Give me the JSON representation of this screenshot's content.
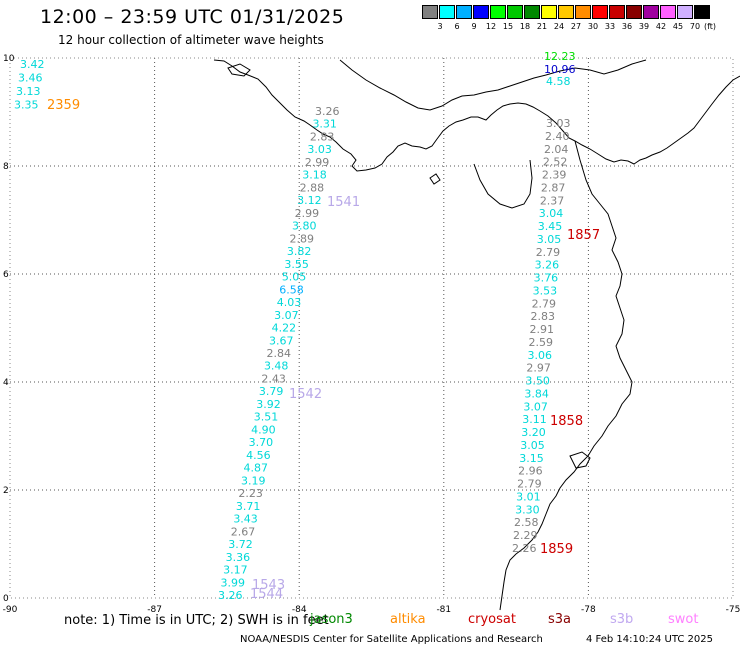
{
  "title": "12:00 – 23:59 UTC 01/31/2025",
  "subtitle": "12 hour collection of altimeter wave heights",
  "colorbar": {
    "unit": "(ft)",
    "colors": [
      "#808080",
      "#00ffff",
      "#00b0ff",
      "#0000ff",
      "#00ff00",
      "#00c800",
      "#008800",
      "#ffff00",
      "#ffc800",
      "#ff8c00",
      "#ff0000",
      "#c80000",
      "#880000",
      "#a000a0",
      "#ff60ff",
      "#d0b0ff",
      "#000000"
    ],
    "labels": [
      "3",
      "6",
      "9",
      "12",
      "15",
      "18",
      "21",
      "24",
      "27",
      "30",
      "33",
      "36",
      "39",
      "42",
      "45",
      "70",
      "(ft)"
    ]
  },
  "axes": {
    "lon_ticks": [
      "-90",
      "-87",
      "-84",
      "-81",
      "-78",
      "-75"
    ],
    "lat_ticks": [
      "0",
      "2",
      "4",
      "6",
      "8",
      "10"
    ],
    "lon_range": [
      -90,
      -75
    ],
    "lat_range": [
      0,
      10
    ]
  },
  "tracks": [
    {
      "id": "track-2359",
      "label": "2359",
      "label_color": "#ff8c00",
      "values": [
        {
          "v": "3.42",
          "c": "#00d8d8"
        },
        {
          "v": "3.46",
          "c": "#00d8d8"
        },
        {
          "v": "3.13",
          "c": "#00d8d8"
        },
        {
          "v": "3.35",
          "c": "#00d8d8"
        }
      ]
    },
    {
      "id": "track-western",
      "labels": [
        {
          "text": "1541",
          "color": "#b8a8e8"
        },
        {
          "text": "1542",
          "color": "#b8a8e8"
        },
        {
          "text": "1543",
          "color": "#b8a8e8"
        },
        {
          "text": "1544",
          "color": "#b8a8e8"
        }
      ],
      "values": [
        {
          "v": "3.26",
          "c": "#808080"
        },
        {
          "v": "3.31",
          "c": "#00d8d8"
        },
        {
          "v": "2.83",
          "c": "#808080"
        },
        {
          "v": "3.03",
          "c": "#00d8d8"
        },
        {
          "v": "2.99",
          "c": "#808080"
        },
        {
          "v": "3.18",
          "c": "#00d8d8"
        },
        {
          "v": "2.88",
          "c": "#808080"
        },
        {
          "v": "3.12",
          "c": "#00d8d8"
        },
        {
          "v": "2.99",
          "c": "#808080"
        },
        {
          "v": "3.80",
          "c": "#00d8d8"
        },
        {
          "v": "2.89",
          "c": "#808080"
        },
        {
          "v": "3.82",
          "c": "#00d8d8"
        },
        {
          "v": "3.55",
          "c": "#00d8d8"
        },
        {
          "v": "5.05",
          "c": "#00d8d8"
        },
        {
          "v": "6.58",
          "c": "#00b0ff"
        },
        {
          "v": "4.03",
          "c": "#00d8d8"
        },
        {
          "v": "3.07",
          "c": "#00d8d8"
        },
        {
          "v": "4.22",
          "c": "#00d8d8"
        },
        {
          "v": "3.67",
          "c": "#00d8d8"
        },
        {
          "v": "2.84",
          "c": "#808080"
        },
        {
          "v": "3.48",
          "c": "#00d8d8"
        },
        {
          "v": "2.43",
          "c": "#808080"
        },
        {
          "v": "3.79",
          "c": "#00d8d8"
        },
        {
          "v": "3.92",
          "c": "#00d8d8"
        },
        {
          "v": "3.51",
          "c": "#00d8d8"
        },
        {
          "v": "4.90",
          "c": "#00d8d8"
        },
        {
          "v": "3.70",
          "c": "#00d8d8"
        },
        {
          "v": "4.56",
          "c": "#00d8d8"
        },
        {
          "v": "4.87",
          "c": "#00d8d8"
        },
        {
          "v": "3.19",
          "c": "#00d8d8"
        },
        {
          "v": "2.23",
          "c": "#808080"
        },
        {
          "v": "3.71",
          "c": "#00d8d8"
        },
        {
          "v": "3.43",
          "c": "#00d8d8"
        },
        {
          "v": "2.67",
          "c": "#808080"
        },
        {
          "v": "3.72",
          "c": "#00d8d8"
        },
        {
          "v": "3.36",
          "c": "#00d8d8"
        },
        {
          "v": "3.17",
          "c": "#00d8d8"
        },
        {
          "v": "3.99",
          "c": "#00d8d8"
        },
        {
          "v": "3.26",
          "c": "#00d8d8"
        }
      ]
    },
    {
      "id": "track-eastern",
      "labels": [
        {
          "text": "1857",
          "color": "#cc0000"
        },
        {
          "text": "1858",
          "color": "#cc0000"
        },
        {
          "text": "1859",
          "color": "#cc0000"
        }
      ],
      "top_values": [
        {
          "v": "12.23",
          "c": "#00dd00"
        },
        {
          "v": "10.96",
          "c": "#0000cc"
        },
        {
          "v": "4.58",
          "c": "#00d8d8"
        }
      ],
      "values": [
        {
          "v": "3.03",
          "c": "#808080"
        },
        {
          "v": "2.40",
          "c": "#808080"
        },
        {
          "v": "2.04",
          "c": "#808080"
        },
        {
          "v": "2.52",
          "c": "#808080"
        },
        {
          "v": "2.39",
          "c": "#808080"
        },
        {
          "v": "2.87",
          "c": "#808080"
        },
        {
          "v": "2.37",
          "c": "#808080"
        },
        {
          "v": "3.04",
          "c": "#00d8d8"
        },
        {
          "v": "3.45",
          "c": "#00d8d8"
        },
        {
          "v": "3.05",
          "c": "#00d8d8"
        },
        {
          "v": "2.79",
          "c": "#808080"
        },
        {
          "v": "3.26",
          "c": "#00d8d8"
        },
        {
          "v": "3.76",
          "c": "#00d8d8"
        },
        {
          "v": "3.53",
          "c": "#00d8d8"
        },
        {
          "v": "2.79",
          "c": "#808080"
        },
        {
          "v": "2.83",
          "c": "#808080"
        },
        {
          "v": "2.91",
          "c": "#808080"
        },
        {
          "v": "2.59",
          "c": "#808080"
        },
        {
          "v": "3.06",
          "c": "#00d8d8"
        },
        {
          "v": "2.97",
          "c": "#808080"
        },
        {
          "v": "3.50",
          "c": "#00d8d8"
        },
        {
          "v": "3.84",
          "c": "#00d8d8"
        },
        {
          "v": "3.07",
          "c": "#00d8d8"
        },
        {
          "v": "3.11",
          "c": "#00d8d8"
        },
        {
          "v": "3.20",
          "c": "#00d8d8"
        },
        {
          "v": "3.05",
          "c": "#00d8d8"
        },
        {
          "v": "3.15",
          "c": "#00d8d8"
        },
        {
          "v": "2.96",
          "c": "#808080"
        },
        {
          "v": "2.79",
          "c": "#808080"
        },
        {
          "v": "3.01",
          "c": "#00d8d8"
        },
        {
          "v": "3.30",
          "c": "#00d8d8"
        },
        {
          "v": "2.58",
          "c": "#808080"
        },
        {
          "v": "2.29",
          "c": "#808080"
        },
        {
          "v": "2.26",
          "c": "#808080"
        }
      ]
    }
  ],
  "footer": {
    "note": "note: 1) Time is in UTC; 2) SWH is in feet",
    "satellites": [
      {
        "name": "jason3",
        "color": "#008800"
      },
      {
        "name": "altika",
        "color": "#ff8c00"
      },
      {
        "name": "cryosat",
        "color": "#cc0000"
      },
      {
        "name": "s3a",
        "color": "#880000"
      },
      {
        "name": "s3b",
        "color": "#c0a8f0"
      },
      {
        "name": "swot",
        "color": "#ff80ff"
      }
    ],
    "credit": "NOAA/NESDIS Center for Satellite Applications and Research",
    "timestamp": "4 Feb 14:10:24 UTC 2025"
  }
}
